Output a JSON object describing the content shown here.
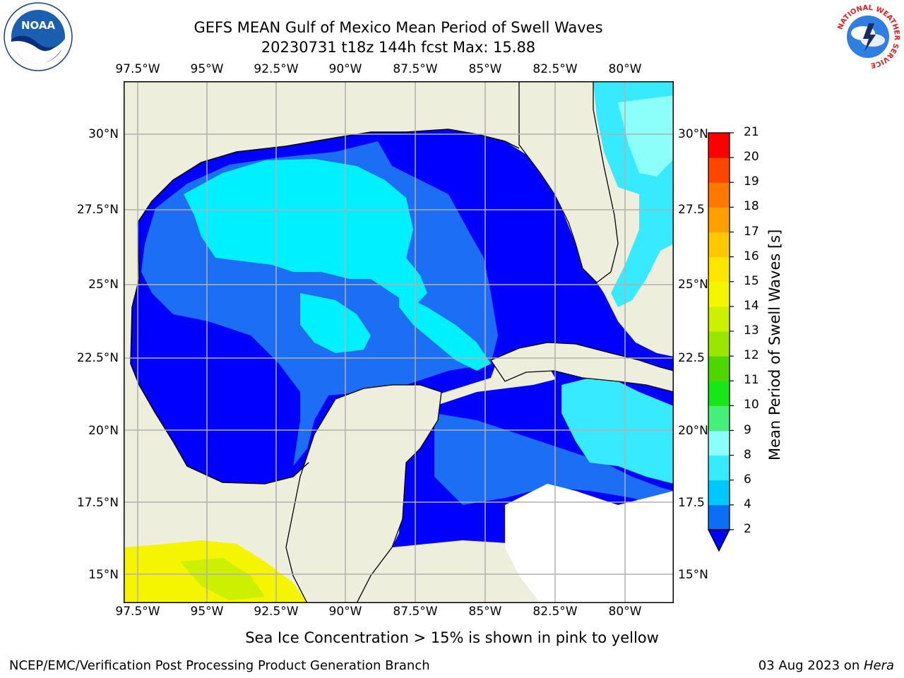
{
  "title": {
    "line1": "GEFS MEAN Gulf of Mexico Mean Period of Swell Waves",
    "line2": "20230731 t18z 144h fcst   Max: 15.88"
  },
  "map": {
    "lon_labels": [
      "97.5°W",
      "95°W",
      "92.5°W",
      "90°W",
      "87.5°W",
      "85°W",
      "82.5°W",
      "80°W"
    ],
    "lat_labels_left": [
      "30°N",
      "27.5°N",
      "25°N",
      "22.5°N",
      "20°N",
      "17.5°N",
      "15°N"
    ],
    "lat_labels_right": [
      "30°N",
      "27.5",
      "25°N",
      "22.5",
      "20°N",
      "17.5",
      "15°N"
    ],
    "land_color": "#eeeedc",
    "ocean_missing_color": "#ffffff"
  },
  "colorbar": {
    "title": "Mean Period of Swell Waves [s]",
    "ticks": [
      "2",
      "4",
      "6",
      "8",
      "9",
      "10",
      "11",
      "12",
      "13",
      "14",
      "15",
      "16",
      "17",
      "18",
      "19",
      "20",
      "21"
    ],
    "colors": [
      "#0b6ef5",
      "#00c8ff",
      "#38eaff",
      "#8cfffa",
      "#44f07a",
      "#19e619",
      "#4fd600",
      "#9ae600",
      "#cdf000",
      "#f5f500",
      "#ffe600",
      "#ffc800",
      "#ffa000",
      "#ff7800",
      "#ff4600",
      "#ff0000"
    ],
    "extend_color": "#0000ff"
  },
  "note": "Sea Ice Concentration > 15% is shown in pink to yellow",
  "footer": {
    "left": "NCEP/EMC/Verification Post Processing Product Generation Branch",
    "right_date": "03 Aug 2023 on ",
    "right_host": "Hera"
  },
  "logos": {
    "noaa": "NOAA",
    "nws_ring": "NATIONAL WEATHER SERVICE"
  }
}
